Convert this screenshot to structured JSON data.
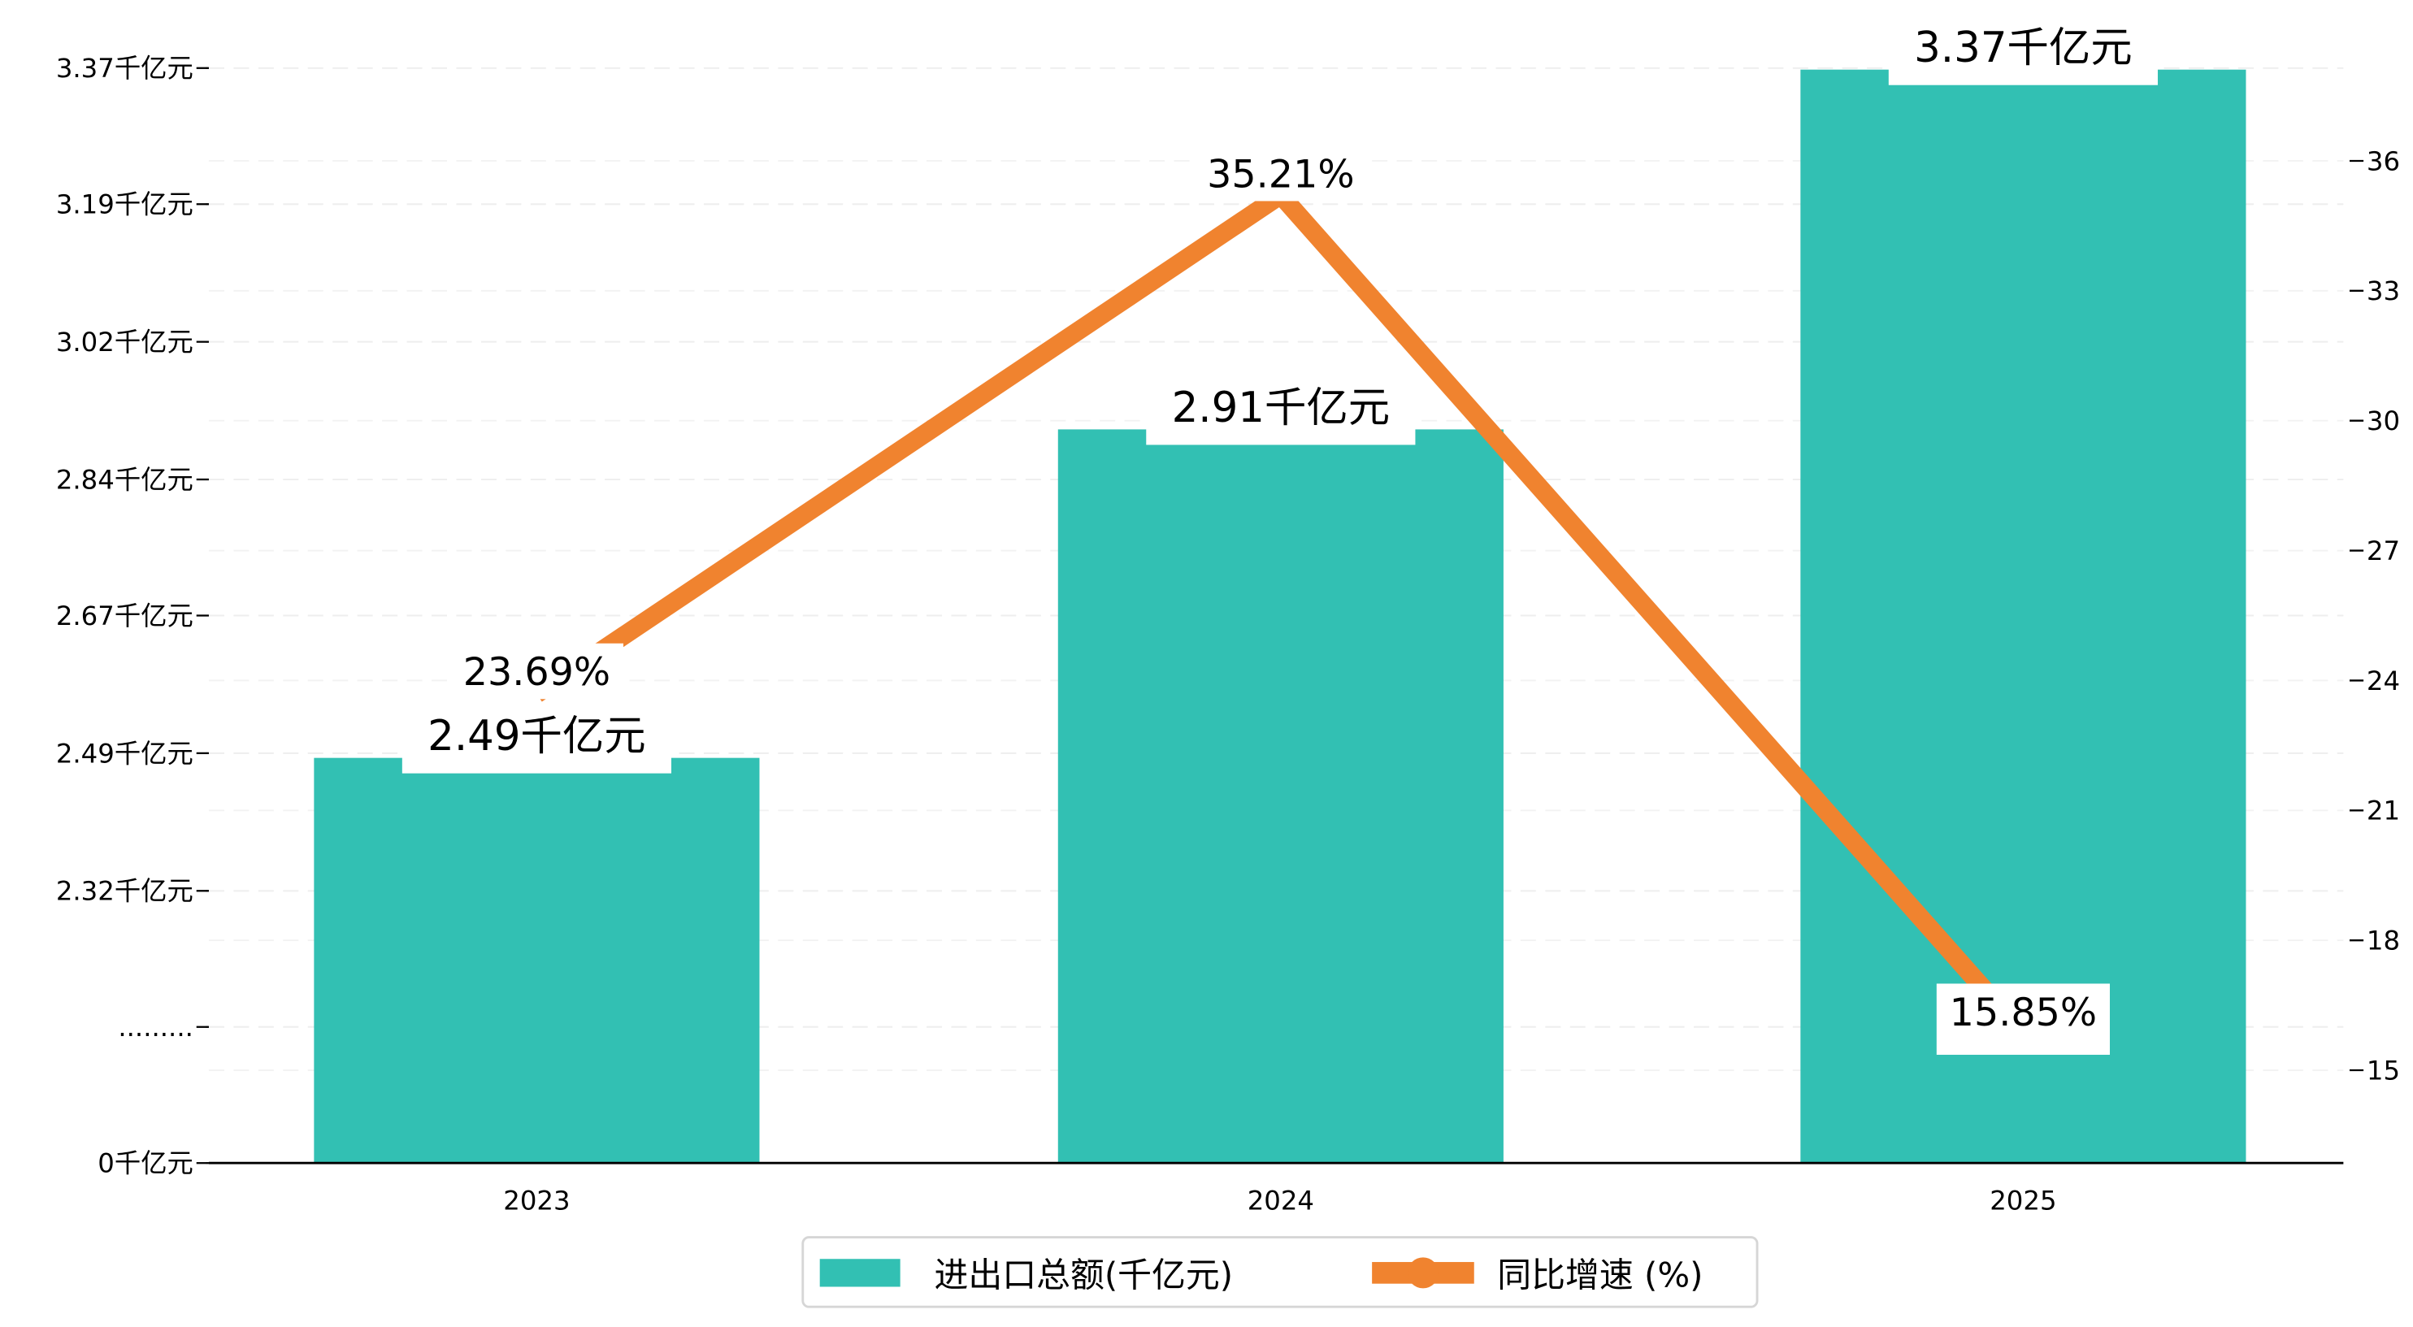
{
  "chart_data": {
    "type": "bar+line",
    "categories": [
      "2023",
      "2024",
      "2025"
    ],
    "series": [
      {
        "name": "进出口总额(千亿元)",
        "type": "bar",
        "axis": "left",
        "values": [
          2.49,
          2.91,
          3.37
        ],
        "labels": [
          "2.49千亿元",
          "2.91千亿元",
          "3.37千亿元"
        ],
        "color": "#32C0B3"
      },
      {
        "name": "同比增速 (%)",
        "type": "line",
        "axis": "right",
        "values": [
          23.69,
          35.21,
          15.85
        ],
        "labels": [
          "23.69%",
          "35.21%",
          "15.85%"
        ],
        "color": "#F0832F"
      }
    ],
    "left_axis": {
      "tick_labels": [
        "0千亿元",
        ".........",
        "2.32千亿元",
        "2.49千亿元",
        "2.67千亿元",
        "2.84千亿元",
        "3.02千亿元",
        "3.19千亿元",
        "3.37千亿元"
      ],
      "broken": true,
      "range": [
        2.145,
        3.37
      ]
    },
    "right_axis": {
      "tick_labels": [
        "15",
        "18",
        "21",
        "24",
        "27",
        "30",
        "33",
        "36"
      ],
      "ticks": [
        15,
        18,
        21,
        24,
        27,
        30,
        33,
        36
      ]
    },
    "grid": true,
    "legend": {
      "placement": "bottom-center",
      "entries": [
        "进出口总额(千亿元)",
        "同比增速 (%)"
      ]
    }
  }
}
